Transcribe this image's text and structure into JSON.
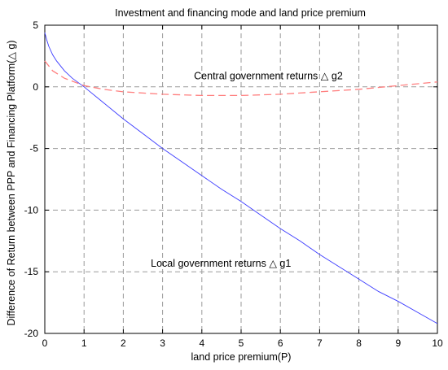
{
  "chart_data": {
    "type": "line",
    "title": "Investment and financing mode and land price premium",
    "xlabel": "land price premium(P)",
    "ylabel": "Difference of Return between PPP and Financing Platform(△ g)",
    "xlim": [
      0,
      10
    ],
    "ylim": [
      -20,
      5
    ],
    "x_ticks": [
      "0",
      "1",
      "2",
      "3",
      "4",
      "5",
      "6",
      "7",
      "8",
      "9",
      "10"
    ],
    "y_ticks": [
      "5",
      "0",
      "-5",
      "-10",
      "-15",
      "-20"
    ],
    "grid": true,
    "annotations": [
      {
        "text": "Central government returns △ g2",
        "x": 3.8,
        "y": 0.6
      },
      {
        "text": "Local government returns △ g1",
        "x": 2.7,
        "y": -14.6
      }
    ],
    "series": [
      {
        "key": "g1",
        "color": "#3b3bff",
        "style": "solid",
        "x": [
          0,
          0.05,
          0.1,
          0.2,
          0.3,
          0.5,
          0.7,
          1.0,
          1.5,
          2.0,
          2.5,
          3.0,
          3.5,
          4.0,
          4.5,
          5.0,
          5.5,
          6.0,
          6.5,
          7.0,
          7.5,
          8.0,
          8.5,
          9.0,
          9.5,
          10.0
        ],
        "y": [
          4.4,
          3.8,
          3.3,
          2.6,
          2.1,
          1.3,
          0.7,
          0.0,
          -1.3,
          -2.6,
          -3.8,
          -5.0,
          -6.1,
          -7.2,
          -8.3,
          -9.3,
          -10.4,
          -11.5,
          -12.5,
          -13.6,
          -14.6,
          -15.6,
          -16.6,
          -17.4,
          -18.3,
          -19.2
        ]
      },
      {
        "key": "g2",
        "color": "#ff7f7f",
        "style": "dashed",
        "x": [
          0,
          0.2,
          0.5,
          1.0,
          1.5,
          2.0,
          3.0,
          4.0,
          5.0,
          6.0,
          7.0,
          8.0,
          9.0,
          10.0
        ],
        "y": [
          2.1,
          1.3,
          0.7,
          0.1,
          -0.2,
          -0.4,
          -0.6,
          -0.7,
          -0.7,
          -0.6,
          -0.4,
          -0.2,
          0.1,
          0.4
        ]
      }
    ]
  }
}
